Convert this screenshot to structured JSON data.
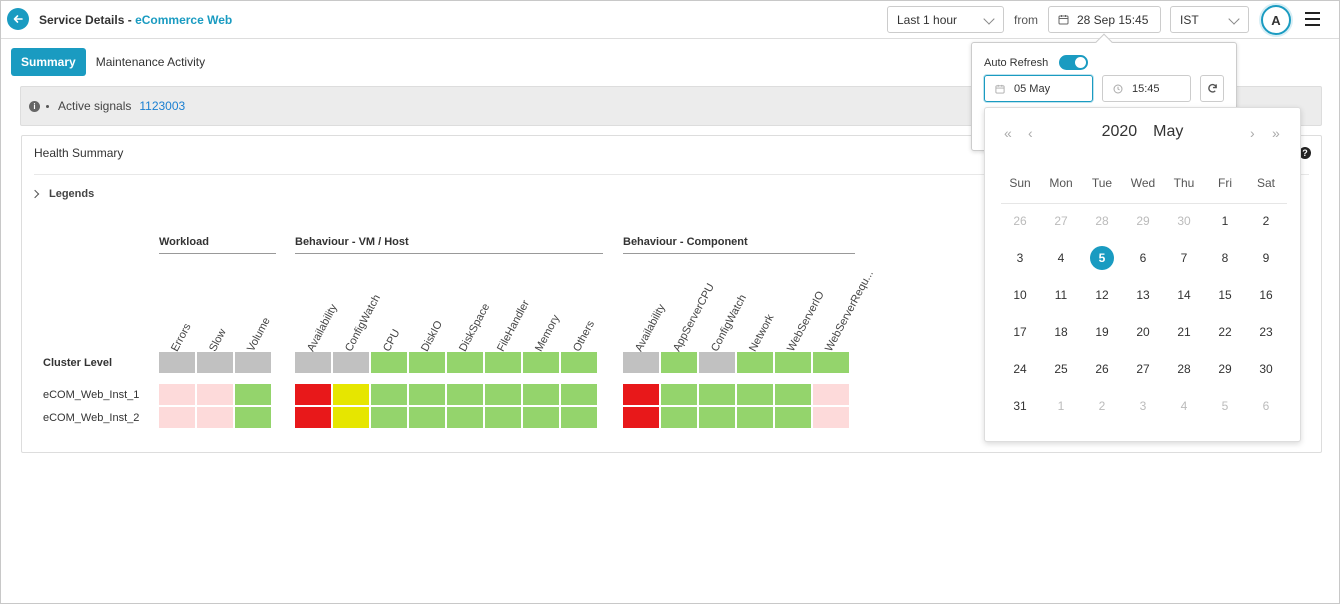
{
  "header": {
    "title_prefix": "Service Details - ",
    "title_service": "eCommerce Web",
    "range_label": "Last 1 hour",
    "from_label": "from",
    "from_value": "28 Sep 15:45",
    "timezone": "IST",
    "avatar_initial": "A"
  },
  "tabs": [
    {
      "label": "Summary",
      "active": true
    },
    {
      "label": "Maintenance Activity",
      "active": false
    }
  ],
  "signals": {
    "label": "Active signals",
    "value": "1123003"
  },
  "health": {
    "title": "Health Summary",
    "legends_label": "Legends",
    "groups": [
      {
        "title": "Workload",
        "columns": [
          "Errors",
          "Slow",
          "Volume"
        ]
      },
      {
        "title": "Behaviour - VM / Host",
        "columns": [
          "Availability",
          "ConfigWatch",
          "CPU",
          "DiskIO",
          "DiskSpace",
          "FileHandler",
          "Memory",
          "Others"
        ]
      },
      {
        "title": "Behaviour - Component",
        "columns": [
          "Availability",
          "AppServerCPU",
          "ConfigWatch",
          "Network",
          "WebServerIO",
          "WebServerRequ..."
        ]
      }
    ],
    "rows": [
      {
        "label": "Cluster Level",
        "bold": true,
        "cells": [
          [
            "gray",
            "gray",
            "gray"
          ],
          [
            "gray",
            "gray",
            "green",
            "green",
            "green",
            "green",
            "green",
            "green"
          ],
          [
            "gray",
            "green",
            "gray",
            "green",
            "green",
            "green"
          ]
        ]
      },
      {
        "label": "eCOM_Web_Inst_1",
        "bold": false,
        "cells": [
          [
            "pink",
            "pink",
            "green"
          ],
          [
            "red",
            "yellow",
            "green",
            "green",
            "green",
            "green",
            "green",
            "green"
          ],
          [
            "red",
            "green",
            "green",
            "green",
            "green",
            "pink"
          ]
        ]
      },
      {
        "label": "eCOM_Web_Inst_2",
        "bold": false,
        "cells": [
          [
            "pink",
            "pink",
            "green"
          ],
          [
            "red",
            "yellow",
            "green",
            "green",
            "green",
            "green",
            "green",
            "green"
          ],
          [
            "red",
            "green",
            "green",
            "green",
            "green",
            "pink"
          ]
        ]
      }
    ],
    "colors": {
      "gray": "#c1c1c1",
      "green": "#94d46c",
      "pink": "#fddada",
      "red": "#e8181a",
      "yellow": "#e6e600"
    }
  },
  "popover": {
    "auto_refresh_label": "Auto Refresh",
    "auto_refresh_on": true,
    "date_value": "05 May",
    "time_value": "15:45"
  },
  "calendar": {
    "year": "2020",
    "month": "May",
    "weekdays": [
      "Sun",
      "Mon",
      "Tue",
      "Wed",
      "Thu",
      "Fri",
      "Sat"
    ],
    "weeks": [
      [
        {
          "d": "26",
          "m": true
        },
        {
          "d": "27",
          "m": true
        },
        {
          "d": "28",
          "m": true
        },
        {
          "d": "29",
          "m": true
        },
        {
          "d": "30",
          "m": true
        },
        {
          "d": "1"
        },
        {
          "d": "2"
        }
      ],
      [
        {
          "d": "3"
        },
        {
          "d": "4"
        },
        {
          "d": "5",
          "sel": true
        },
        {
          "d": "6"
        },
        {
          "d": "7"
        },
        {
          "d": "8"
        },
        {
          "d": "9"
        }
      ],
      [
        {
          "d": "10"
        },
        {
          "d": "11"
        },
        {
          "d": "12"
        },
        {
          "d": "13"
        },
        {
          "d": "14"
        },
        {
          "d": "15"
        },
        {
          "d": "16"
        }
      ],
      [
        {
          "d": "17"
        },
        {
          "d": "18"
        },
        {
          "d": "19"
        },
        {
          "d": "20"
        },
        {
          "d": "21"
        },
        {
          "d": "22"
        },
        {
          "d": "23"
        }
      ],
      [
        {
          "d": "24"
        },
        {
          "d": "25"
        },
        {
          "d": "26"
        },
        {
          "d": "27"
        },
        {
          "d": "28"
        },
        {
          "d": "29"
        },
        {
          "d": "30"
        }
      ],
      [
        {
          "d": "31"
        },
        {
          "d": "1",
          "m": true
        },
        {
          "d": "2",
          "m": true
        },
        {
          "d": "3",
          "m": true
        },
        {
          "d": "4",
          "m": true
        },
        {
          "d": "5",
          "m": true
        },
        {
          "d": "6",
          "m": true
        }
      ]
    ]
  }
}
